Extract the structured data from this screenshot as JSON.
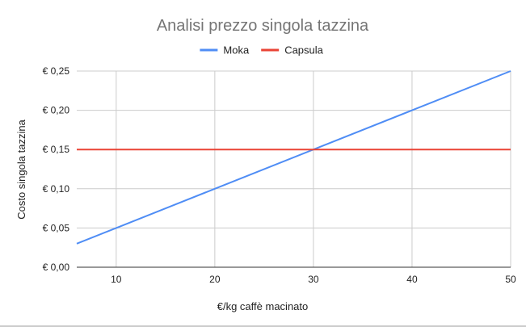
{
  "chart_data": {
    "type": "line",
    "title": "Analisi prezzo singola tazzina",
    "xlabel": "€/kg caffè macinato",
    "ylabel": "Costo singola tazzina",
    "xlim": [
      6,
      50
    ],
    "ylim": [
      0,
      0.25
    ],
    "x_ticks": [
      10,
      20,
      30,
      40,
      50
    ],
    "x_tick_labels": [
      "10",
      "20",
      "30",
      "40",
      "50"
    ],
    "y_ticks": [
      0,
      0.05,
      0.1,
      0.15,
      0.2,
      0.25
    ],
    "y_tick_labels": [
      "€ 0,00",
      "€ 0,05",
      "€ 0,10",
      "€ 0,15",
      "€ 0,20",
      "€ 0,25"
    ],
    "grid": true,
    "legend_position": "top",
    "series": [
      {
        "name": "Moka",
        "color": "#4f8df5",
        "x": [
          6,
          10,
          20,
          30,
          40,
          50
        ],
        "y": [
          0.03,
          0.05,
          0.1,
          0.15,
          0.2,
          0.25
        ]
      },
      {
        "name": "Capsula",
        "color": "#ea4335",
        "x": [
          6,
          50
        ],
        "y": [
          0.15,
          0.15
        ]
      }
    ]
  }
}
